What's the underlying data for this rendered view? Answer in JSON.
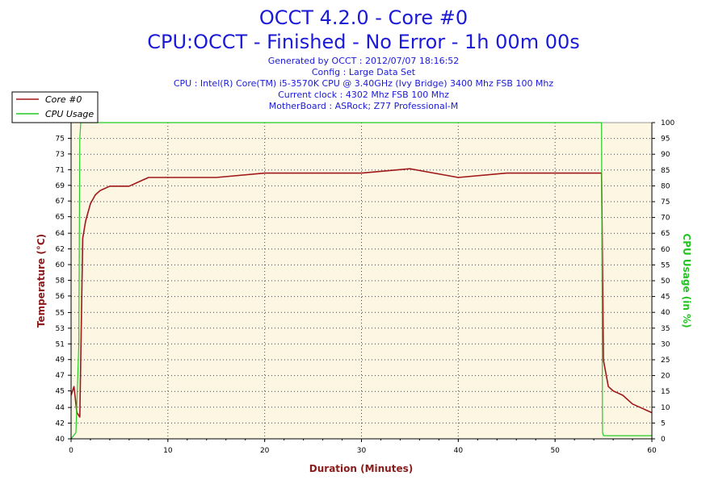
{
  "chart_data": {
    "type": "line",
    "title": "OCCT 4.2.0 - Core #0",
    "subtitle": "CPU:OCCT - Finished - No Error - 1h 00m 00s",
    "info_lines": [
      "Generated by OCCT : 2012/07/07 18:16:52",
      "Config : Large Data Set",
      "CPU : Intel(R) Core(TM) i5-3570K CPU @ 3.40GHz (Ivy Bridge) 3400 Mhz FSB 100 Mhz",
      "Current clock : 4302 Mhz FSB 100 Mhz",
      "MotherBoard : ASRock; Z77 Professional-M"
    ],
    "xlabel": "Duration (Minutes)",
    "ylabel": "Temperature (°C)",
    "y2label": "CPU Usage (in %)",
    "xlim": [
      0,
      60
    ],
    "ylim": [
      40,
      76.3
    ],
    "y2lim": [
      0,
      100
    ],
    "x_ticks": [
      "0",
      "10",
      "20",
      "30",
      "40",
      "50",
      "60"
    ],
    "x_tick_values": [
      0,
      10,
      20,
      30,
      40,
      50,
      60
    ],
    "y_ticks": [
      "40",
      "42",
      "44",
      "45",
      "47",
      "49",
      "51",
      "53",
      "55",
      "56",
      "58",
      "60",
      "62",
      "64",
      "65",
      "67",
      "69",
      "71",
      "73",
      "75"
    ],
    "y_tick_values": [
      40,
      41.8,
      43.6,
      45.5,
      47.3,
      49.1,
      50.9,
      52.7,
      54.5,
      56.4,
      58.2,
      60,
      61.8,
      63.6,
      65.5,
      67.3,
      69.1,
      70.9,
      72.7,
      74.5
    ],
    "y2_ticks": [
      "0",
      "5",
      "10",
      "15",
      "20",
      "25",
      "30",
      "35",
      "40",
      "45",
      "50",
      "55",
      "60",
      "65",
      "70",
      "75",
      "80",
      "85",
      "90",
      "95",
      "100"
    ],
    "y2_tick_values": [
      0,
      5,
      10,
      15,
      20,
      25,
      30,
      35,
      40,
      45,
      50,
      55,
      60,
      65,
      70,
      75,
      80,
      85,
      90,
      95,
      100
    ],
    "grid": true,
    "legend_position": "top-left",
    "colors": {
      "temperature": "#a01818",
      "usage": "#22cc22",
      "plot_bg": "#fdf6e3",
      "title": "#1a1ad8",
      "axis_title_left": "#8b1a1a",
      "axis_title_right": "#22c322"
    },
    "series": [
      {
        "name": "Core #0",
        "axis": "left",
        "x": [
          0,
          0.3,
          0.6,
          0.9,
          1.2,
          1.5,
          2,
          2.5,
          3,
          4,
          5,
          6,
          7,
          8,
          10,
          15,
          20,
          25,
          30,
          35,
          40,
          45,
          50,
          54.8,
          55,
          55.5,
          56,
          57,
          58,
          59,
          60
        ],
        "values": [
          45,
          46,
          43,
          42.5,
          63,
          65,
          67,
          68,
          68.5,
          69,
          69,
          69,
          69.5,
          70,
          70,
          70,
          70.5,
          70.5,
          70.5,
          71,
          70,
          70.5,
          70.5,
          70.5,
          49,
          46,
          45.5,
          45,
          44,
          43.5,
          43
        ]
      },
      {
        "name": "CPU Usage",
        "axis": "right",
        "x": [
          0,
          0.5,
          0.8,
          0.9,
          1,
          1.5,
          2,
          5,
          10,
          20,
          30,
          35,
          40,
          45,
          50,
          54.8,
          54.9,
          55,
          56,
          58,
          60
        ],
        "values": [
          0,
          2,
          30,
          95,
          100,
          100,
          100,
          100,
          100,
          100,
          100,
          100,
          100,
          100,
          100,
          100,
          2,
          1,
          1,
          1,
          1
        ]
      }
    ]
  }
}
